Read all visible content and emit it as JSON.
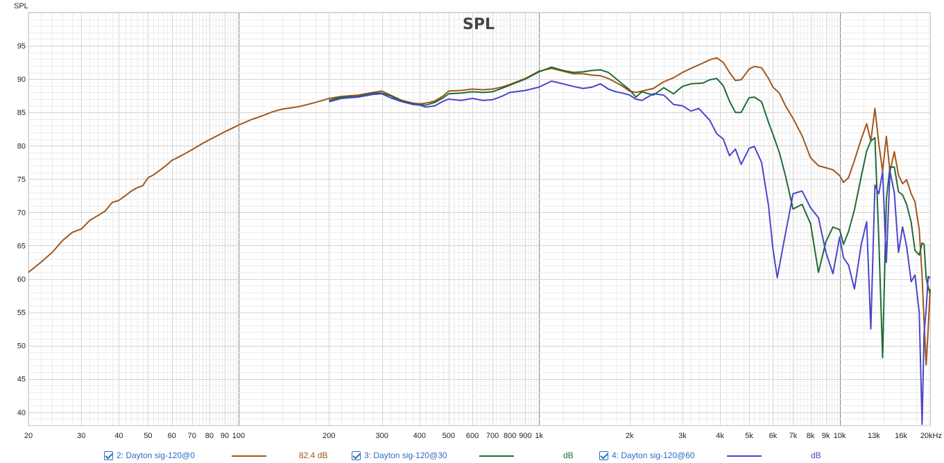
{
  "chart_data": {
    "type": "line",
    "title": "SPL",
    "ylabel": "SPL",
    "xlabel": "",
    "x_scale": "log",
    "xlim": [
      20,
      20000
    ],
    "ylim": [
      38,
      100
    ],
    "x_tick_labels": [
      {
        "v": 20,
        "t": "20"
      },
      {
        "v": 30,
        "t": "30"
      },
      {
        "v": 40,
        "t": "40"
      },
      {
        "v": 50,
        "t": "50"
      },
      {
        "v": 60,
        "t": "60"
      },
      {
        "v": 70,
        "t": "70"
      },
      {
        "v": 80,
        "t": "80"
      },
      {
        "v": 90,
        "t": "90"
      },
      {
        "v": 100,
        "t": "100"
      },
      {
        "v": 200,
        "t": "200"
      },
      {
        "v": 300,
        "t": "300"
      },
      {
        "v": 400,
        "t": "400"
      },
      {
        "v": 500,
        "t": "500"
      },
      {
        "v": 600,
        "t": "600"
      },
      {
        "v": 700,
        "t": "700"
      },
      {
        "v": 800,
        "t": "800"
      },
      {
        "v": 900,
        "t": "900"
      },
      {
        "v": 1000,
        "t": "1k"
      },
      {
        "v": 2000,
        "t": "2k"
      },
      {
        "v": 3000,
        "t": "3k"
      },
      {
        "v": 4000,
        "t": "4k"
      },
      {
        "v": 5000,
        "t": "5k"
      },
      {
        "v": 6000,
        "t": "6k"
      },
      {
        "v": 7000,
        "t": "7k"
      },
      {
        "v": 8000,
        "t": "8k"
      },
      {
        "v": 9000,
        "t": "9k"
      },
      {
        "v": 10000,
        "t": "10k"
      },
      {
        "v": 13000,
        "t": "13k"
      },
      {
        "v": 16000,
        "t": "16k"
      },
      {
        "v": 20000,
        "t": "20kHz"
      }
    ],
    "y_tick_labels": [
      {
        "v": 40,
        "t": "40"
      },
      {
        "v": 45,
        "t": "45"
      },
      {
        "v": 50,
        "t": "50"
      },
      {
        "v": 55,
        "t": "55"
      },
      {
        "v": 60,
        "t": "60"
      },
      {
        "v": 65,
        "t": "65"
      },
      {
        "v": 70,
        "t": "70"
      },
      {
        "v": 75,
        "t": "75"
      },
      {
        "v": 80,
        "t": "80"
      },
      {
        "v": 85,
        "t": "85"
      },
      {
        "v": 90,
        "t": "90"
      },
      {
        "v": 95,
        "t": "95"
      }
    ],
    "grid": true,
    "legend_position": "bottom",
    "series": [
      {
        "name": "2: Dayton sig-120@0",
        "value_label": "82.4 dB",
        "color": "#a0561a",
        "points": [
          [
            20,
            61
          ],
          [
            22,
            62.5
          ],
          [
            24,
            64
          ],
          [
            26,
            65.8
          ],
          [
            28,
            67
          ],
          [
            30,
            67.5
          ],
          [
            32,
            68.8
          ],
          [
            34,
            69.5
          ],
          [
            36,
            70.2
          ],
          [
            38,
            71.5
          ],
          [
            40,
            71.8
          ],
          [
            42,
            72.5
          ],
          [
            44,
            73.2
          ],
          [
            46,
            73.7
          ],
          [
            48,
            74
          ],
          [
            50,
            75.2
          ],
          [
            52,
            75.6
          ],
          [
            55,
            76.4
          ],
          [
            58,
            77.2
          ],
          [
            60,
            77.8
          ],
          [
            62,
            78.1
          ],
          [
            65,
            78.6
          ],
          [
            70,
            79.4
          ],
          [
            75,
            80.2
          ],
          [
            80,
            80.9
          ],
          [
            85,
            81.5
          ],
          [
            90,
            82.1
          ],
          [
            95,
            82.6
          ],
          [
            100,
            83.1
          ],
          [
            110,
            83.9
          ],
          [
            120,
            84.5
          ],
          [
            130,
            85.1
          ],
          [
            140,
            85.5
          ],
          [
            150,
            85.7
          ],
          [
            160,
            85.9
          ],
          [
            170,
            86.2
          ],
          [
            180,
            86.5
          ],
          [
            190,
            86.8
          ],
          [
            200,
            87.1
          ],
          [
            220,
            87.4
          ],
          [
            250,
            87.6
          ],
          [
            280,
            88
          ],
          [
            300,
            88.2
          ],
          [
            320,
            87.6
          ],
          [
            350,
            86.8
          ],
          [
            380,
            86.4
          ],
          [
            400,
            86.3
          ],
          [
            420,
            86.4
          ],
          [
            450,
            86.7
          ],
          [
            480,
            87.5
          ],
          [
            500,
            88.2
          ],
          [
            550,
            88.3
          ],
          [
            600,
            88.5
          ],
          [
            650,
            88.4
          ],
          [
            700,
            88.5
          ],
          [
            750,
            88.8
          ],
          [
            800,
            89.2
          ],
          [
            900,
            90.1
          ],
          [
            1000,
            91.2
          ],
          [
            1100,
            91.6
          ],
          [
            1200,
            91.2
          ],
          [
            1300,
            90.8
          ],
          [
            1400,
            90.8
          ],
          [
            1500,
            90.6
          ],
          [
            1600,
            90.5
          ],
          [
            1700,
            90.1
          ],
          [
            1800,
            89.5
          ],
          [
            1900,
            88.9
          ],
          [
            2000,
            88.2
          ],
          [
            2100,
            88
          ],
          [
            2200,
            88.2
          ],
          [
            2400,
            88.6
          ],
          [
            2600,
            89.6
          ],
          [
            2800,
            90.2
          ],
          [
            3000,
            91
          ],
          [
            3200,
            91.6
          ],
          [
            3500,
            92.4
          ],
          [
            3700,
            92.9
          ],
          [
            3900,
            93.2
          ],
          [
            4100,
            92.5
          ],
          [
            4300,
            91
          ],
          [
            4500,
            89.8
          ],
          [
            4700,
            89.9
          ],
          [
            5000,
            91.5
          ],
          [
            5200,
            91.9
          ],
          [
            5500,
            91.7
          ],
          [
            5800,
            90.1
          ],
          [
            6000,
            88.8
          ],
          [
            6300,
            87.9
          ],
          [
            6600,
            86
          ],
          [
            7000,
            84.1
          ],
          [
            7500,
            81.5
          ],
          [
            8000,
            78.2
          ],
          [
            8500,
            77
          ],
          [
            9000,
            76.7
          ],
          [
            9500,
            76.4
          ],
          [
            10000,
            75.5
          ],
          [
            10300,
            74.5
          ],
          [
            10700,
            75.2
          ],
          [
            11200,
            77.8
          ],
          [
            11800,
            81
          ],
          [
            12300,
            83.3
          ],
          [
            12700,
            80.7
          ],
          [
            13100,
            85.6
          ],
          [
            13500,
            80.3
          ],
          [
            13900,
            76.2
          ],
          [
            14300,
            81.4
          ],
          [
            14700,
            76.1
          ],
          [
            15200,
            79.1
          ],
          [
            15700,
            75.6
          ],
          [
            16200,
            74.3
          ],
          [
            16700,
            74.9
          ],
          [
            17300,
            72.8
          ],
          [
            17800,
            71.6
          ],
          [
            18400,
            67.4
          ],
          [
            18800,
            60.5
          ],
          [
            19100,
            53.5
          ],
          [
            19400,
            47.1
          ],
          [
            19700,
            52.5
          ],
          [
            20000,
            58.5
          ]
        ]
      },
      {
        "name": "3: Dayton sig-120@30",
        "value_label": "dB",
        "color": "#1e6b35",
        "points": [
          [
            200,
            86.8
          ],
          [
            220,
            87.3
          ],
          [
            250,
            87.4
          ],
          [
            280,
            87.9
          ],
          [
            300,
            87.9
          ],
          [
            320,
            87.5
          ],
          [
            350,
            86.7
          ],
          [
            380,
            86.3
          ],
          [
            400,
            86.2
          ],
          [
            420,
            86.1
          ],
          [
            450,
            86.5
          ],
          [
            480,
            87.2
          ],
          [
            500,
            87.8
          ],
          [
            550,
            87.9
          ],
          [
            600,
            88.1
          ],
          [
            650,
            88
          ],
          [
            700,
            88.1
          ],
          [
            750,
            88.6
          ],
          [
            800,
            89.1
          ],
          [
            900,
            90
          ],
          [
            1000,
            91.1
          ],
          [
            1100,
            91.8
          ],
          [
            1200,
            91.3
          ],
          [
            1300,
            91
          ],
          [
            1400,
            91.1
          ],
          [
            1500,
            91.3
          ],
          [
            1600,
            91.4
          ],
          [
            1700,
            91
          ],
          [
            1800,
            90.1
          ],
          [
            1900,
            89.2
          ],
          [
            2000,
            88.4
          ],
          [
            2100,
            87.3
          ],
          [
            2200,
            88.1
          ],
          [
            2400,
            87.6
          ],
          [
            2600,
            88.7
          ],
          [
            2800,
            87.8
          ],
          [
            3000,
            88.9
          ],
          [
            3200,
            89.3
          ],
          [
            3500,
            89.4
          ],
          [
            3700,
            89.9
          ],
          [
            3900,
            90.1
          ],
          [
            4100,
            89
          ],
          [
            4300,
            86.7
          ],
          [
            4500,
            85
          ],
          [
            4700,
            85
          ],
          [
            5000,
            87.2
          ],
          [
            5200,
            87.3
          ],
          [
            5500,
            86.6
          ],
          [
            5800,
            83.5
          ],
          [
            6000,
            81.7
          ],
          [
            6300,
            79
          ],
          [
            6600,
            75.5
          ],
          [
            7000,
            70.5
          ],
          [
            7500,
            71.2
          ],
          [
            8000,
            68.3
          ],
          [
            8500,
            61
          ],
          [
            9000,
            65.6
          ],
          [
            9500,
            67.8
          ],
          [
            10000,
            67.4
          ],
          [
            10300,
            65.2
          ],
          [
            10700,
            67.1
          ],
          [
            11200,
            70.4
          ],
          [
            11800,
            75.4
          ],
          [
            12300,
            79.2
          ],
          [
            12700,
            80.7
          ],
          [
            13100,
            81.2
          ],
          [
            13500,
            66
          ],
          [
            13900,
            48.2
          ],
          [
            14300,
            72
          ],
          [
            14700,
            76.8
          ],
          [
            15200,
            76.8
          ],
          [
            15700,
            73.1
          ],
          [
            16200,
            72.6
          ],
          [
            16700,
            71.2
          ],
          [
            17300,
            68.5
          ],
          [
            17800,
            64.3
          ],
          [
            18400,
            63.6
          ],
          [
            18800,
            65.4
          ],
          [
            19100,
            65.2
          ],
          [
            19400,
            60.1
          ],
          [
            19700,
            58.8
          ],
          [
            20000,
            57.8
          ]
        ]
      },
      {
        "name": "4: Dayton sig-120@60",
        "value_label": "dB",
        "color": "#4a45c8",
        "points": [
          [
            200,
            86.6
          ],
          [
            220,
            87.1
          ],
          [
            250,
            87.3
          ],
          [
            280,
            87.7
          ],
          [
            300,
            87.8
          ],
          [
            320,
            87.2
          ],
          [
            350,
            86.6
          ],
          [
            380,
            86.2
          ],
          [
            400,
            86.1
          ],
          [
            420,
            85.8
          ],
          [
            450,
            86
          ],
          [
            480,
            86.7
          ],
          [
            500,
            87
          ],
          [
            550,
            86.8
          ],
          [
            600,
            87.1
          ],
          [
            650,
            86.8
          ],
          [
            700,
            86.9
          ],
          [
            750,
            87.4
          ],
          [
            800,
            88
          ],
          [
            900,
            88.3
          ],
          [
            1000,
            88.8
          ],
          [
            1100,
            89.7
          ],
          [
            1200,
            89.3
          ],
          [
            1300,
            88.9
          ],
          [
            1400,
            88.6
          ],
          [
            1500,
            88.8
          ],
          [
            1600,
            89.3
          ],
          [
            1700,
            88.5
          ],
          [
            1800,
            88.1
          ],
          [
            1900,
            87.9
          ],
          [
            2000,
            87.6
          ],
          [
            2100,
            87
          ],
          [
            2200,
            86.8
          ],
          [
            2400,
            87.8
          ],
          [
            2600,
            87.6
          ],
          [
            2800,
            86.2
          ],
          [
            3000,
            86
          ],
          [
            3200,
            85.2
          ],
          [
            3400,
            85.6
          ],
          [
            3700,
            83.8
          ],
          [
            3900,
            81.8
          ],
          [
            4100,
            81
          ],
          [
            4300,
            78.5
          ],
          [
            4500,
            79.5
          ],
          [
            4700,
            77.2
          ],
          [
            5000,
            79.6
          ],
          [
            5200,
            79.9
          ],
          [
            5500,
            77.5
          ],
          [
            5800,
            71
          ],
          [
            6000,
            64.5
          ],
          [
            6200,
            60.2
          ],
          [
            6500,
            65.2
          ],
          [
            7000,
            72.8
          ],
          [
            7500,
            73.2
          ],
          [
            8000,
            70.7
          ],
          [
            8500,
            69.2
          ],
          [
            9000,
            64
          ],
          [
            9500,
            60.8
          ],
          [
            10000,
            66.3
          ],
          [
            10300,
            63.2
          ],
          [
            10700,
            62.1
          ],
          [
            11200,
            58.5
          ],
          [
            11800,
            65.2
          ],
          [
            12300,
            68.6
          ],
          [
            12700,
            52.5
          ],
          [
            13100,
            74.1
          ],
          [
            13500,
            72.8
          ],
          [
            13900,
            76.1
          ],
          [
            14300,
            62.5
          ],
          [
            14700,
            76.2
          ],
          [
            15200,
            72.9
          ],
          [
            15700,
            64
          ],
          [
            16200,
            67.8
          ],
          [
            16700,
            64.9
          ],
          [
            17300,
            59.6
          ],
          [
            17800,
            60.6
          ],
          [
            18400,
            55
          ],
          [
            18800,
            38.2
          ],
          [
            19100,
            51.8
          ],
          [
            19400,
            55.5
          ],
          [
            19700,
            60.4
          ],
          [
            20000,
            60.1
          ]
        ]
      }
    ]
  }
}
